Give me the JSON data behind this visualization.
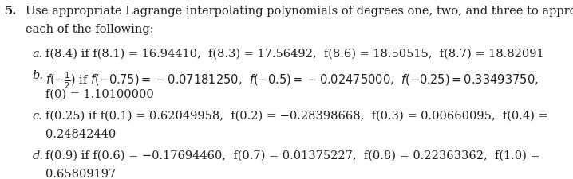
{
  "title_num": "5.",
  "title_text": "Use appropriate Lagrange interpolating polynomials of degrees one, two, and three to approximate",
  "title_text2": "each of the following:",
  "bg_color": "#ffffff",
  "text_color": "#231f20",
  "font_size": 10.5,
  "lines": [
    {
      "label": "a.",
      "label_style": "italic",
      "col1": "f",
      "content": "(8.4) if  f(8.1) = 16.94410,  f(8.3) = 17.56492,  f(8.6) = 18.50515,  f(8.7) = 18.82091"
    },
    {
      "label": "b.",
      "label_style": "italic",
      "content": "f(−½) if f(−0.75) = −0.07181250,  f(−0.5) = −0.02475000,  f(−0.25) = 0.33493750,",
      "content2": "f(0) = 1.10100000"
    },
    {
      "label": "c.",
      "label_style": "italic",
      "content": "f(0.25) if f(0.1) = 0.62049958,  f(0.2) = −0.28398668,  f(0.3) = 0.00660095,  f(0.4) =",
      "content2": "0.24842440"
    },
    {
      "label": "d.",
      "label_style": "italic",
      "content": "f(0.9) if f(0.6) = −0.17694460,  f(0.7) = 0.01375227,  f(0.8) = 0.22363362,  f(1.0) =",
      "content2": "0.65809197"
    }
  ]
}
